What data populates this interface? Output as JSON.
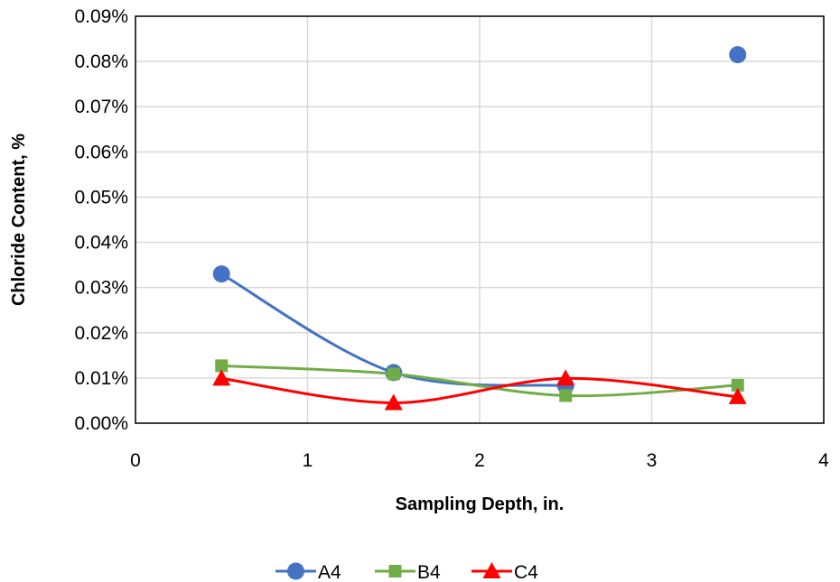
{
  "chart_data": {
    "type": "scatter",
    "title": "",
    "xlabel": "Sampling Depth, in.",
    "ylabel": "Chloride Content, %",
    "xlim": [
      0,
      4
    ],
    "ylim": [
      0,
      0.09
    ],
    "x_ticks": [
      0,
      1,
      2,
      3,
      4
    ],
    "x_tick_labels": [
      "0",
      "1",
      "2",
      "3",
      "4"
    ],
    "y_ticks": [
      0,
      0.01,
      0.02,
      0.03,
      0.04,
      0.05,
      0.06,
      0.07,
      0.08,
      0.09
    ],
    "y_tick_labels": [
      "0.00%",
      "0.01%",
      "0.02%",
      "0.03%",
      "0.04%",
      "0.05%",
      "0.06%",
      "0.07%",
      "0.08%",
      "0.09%"
    ],
    "grid": true,
    "smooth_lines": true,
    "legend_position": "bottom",
    "series": [
      {
        "name": "A4",
        "color": "#4472C4",
        "marker": "circle",
        "x": [
          0.5,
          1.5,
          2.5,
          3.5
        ],
        "y": [
          0.033,
          0.0112,
          0.0083,
          0.0815
        ],
        "line_break_after_index": 2
      },
      {
        "name": "B4",
        "color": "#70AD47",
        "marker": "square",
        "x": [
          0.5,
          1.5,
          2.5,
          3.5
        ],
        "y": [
          0.0127,
          0.0109,
          0.0061,
          0.0084
        ]
      },
      {
        "name": "C4",
        "color": "#FF0000",
        "marker": "triangle",
        "x": [
          0.5,
          1.5,
          2.5,
          3.5
        ],
        "y": [
          0.0099,
          0.0045,
          0.0099,
          0.0058
        ]
      }
    ]
  }
}
